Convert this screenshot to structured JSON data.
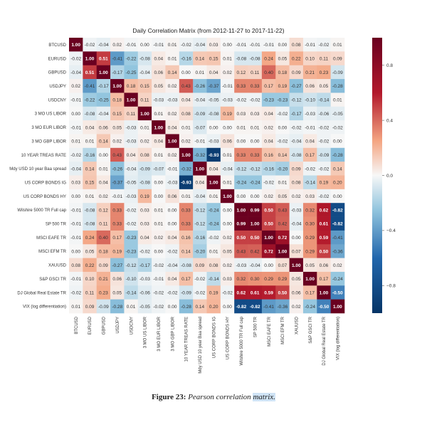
{
  "caption": {
    "label": "Figure 23:",
    "text": "Pearson correlation",
    "highlight": "matrix."
  },
  "chart_data": {
    "type": "heatmap",
    "title": "Daily Correlation Matrix (from 2012-11-27 to 2017-11-22)",
    "labels": [
      "BTCUSD",
      "EURUSD",
      "GBPUSD",
      "USDJPY",
      "USDCNY",
      "3 MO US LIBOR",
      "3 MO EUR LIBOR",
      "3 MO GBP LIBOR",
      "10 YEAR TREAS RATE",
      "Mdy USD 10 year Baa spread",
      "US CORP BONDS IG",
      "US CORP BONDS HY",
      "Wilshire 5000 TR Full cap",
      "SP 500 TR",
      "MSCI EAFE TR",
      "MSCI EFM TR",
      "XAUUSD",
      "S&P GSCI TR",
      "DJ Global Real Estate TR",
      "VIX (log differentiation)"
    ],
    "matrix": [
      [
        1.0,
        -0.02,
        -0.04,
        0.02,
        -0.01,
        -0.0,
        -0.01,
        0.01,
        -0.02,
        -0.04,
        0.03,
        0.0,
        -0.01,
        -0.01,
        -0.01,
        -0.0,
        0.08,
        -0.01,
        -0.02,
        0.01
      ],
      [
        -0.02,
        1.0,
        0.51,
        -0.41,
        -0.22,
        -0.08,
        0.04,
        0.01,
        -0.16,
        0.14,
        0.15,
        0.01,
        -0.08,
        -0.08,
        0.24,
        0.05,
        0.22,
        0.1,
        0.11,
        0.09
      ],
      [
        -0.04,
        0.51,
        1.0,
        -0.17,
        -0.25,
        -0.04,
        0.06,
        0.14,
        -0.0,
        0.01,
        0.04,
        0.02,
        0.12,
        0.11,
        0.4,
        0.18,
        0.09,
        0.21,
        0.23,
        -0.09
      ],
      [
        0.02,
        -0.41,
        -0.17,
        1.0,
        0.18,
        0.15,
        0.05,
        0.02,
        0.43,
        -0.26,
        -0.37,
        -0.01,
        0.33,
        0.33,
        0.17,
        0.19,
        -0.27,
        0.06,
        0.05,
        -0.28
      ],
      [
        -0.01,
        -0.22,
        -0.25,
        0.18,
        1.0,
        0.11,
        -0.03,
        -0.03,
        0.04,
        -0.04,
        -0.05,
        -0.03,
        -0.02,
        -0.02,
        -0.23,
        -0.23,
        -0.12,
        -0.1,
        -0.14,
        0.01
      ],
      [
        -0.0,
        -0.08,
        -0.04,
        0.15,
        0.11,
        1.0,
        0.01,
        0.02,
        0.08,
        -0.09,
        -0.08,
        0.19,
        0.03,
        0.03,
        0.04,
        -0.02,
        -0.17,
        -0.03,
        -0.06,
        -0.05
      ],
      [
        -0.01,
        0.04,
        0.06,
        0.05,
        -0.03,
        0.01,
        1.0,
        0.04,
        0.01,
        -0.07,
        0.0,
        -0.0,
        0.01,
        0.01,
        0.02,
        0.0,
        -0.02,
        -0.01,
        -0.02,
        -0.02
      ],
      [
        0.01,
        0.01,
        0.14,
        0.02,
        -0.03,
        0.02,
        0.04,
        1.0,
        0.02,
        -0.01,
        -0.03,
        0.06,
        0.0,
        0.0,
        0.04,
        -0.02,
        -0.04,
        0.04,
        -0.02,
        -0.0
      ],
      [
        -0.02,
        -0.16,
        -0.0,
        0.43,
        0.04,
        0.08,
        0.01,
        0.02,
        1.0,
        -0.32,
        -0.93,
        0.01,
        0.33,
        0.33,
        0.16,
        0.14,
        -0.08,
        0.17,
        -0.09,
        -0.28
      ],
      [
        -0.04,
        0.14,
        0.01,
        -0.26,
        -0.04,
        -0.09,
        -0.07,
        -0.01,
        -0.32,
        1.0,
        0.04,
        -0.04,
        -0.12,
        -0.12,
        -0.16,
        -0.2,
        0.09,
        -0.02,
        -0.02,
        0.14
      ],
      [
        0.03,
        0.15,
        0.04,
        -0.37,
        -0.05,
        -0.08,
        0.0,
        -0.03,
        -0.93,
        0.04,
        1.0,
        0.01,
        -0.24,
        -0.24,
        -0.02,
        0.01,
        0.08,
        -0.14,
        0.19,
        0.2
      ],
      [
        0.0,
        0.01,
        0.02,
        -0.01,
        -0.03,
        0.19,
        -0.0,
        0.06,
        0.01,
        -0.04,
        0.01,
        1.0,
        -0.0,
        -0.0,
        0.02,
        0.05,
        0.02,
        0.03,
        -0.02,
        -0.0
      ],
      [
        -0.01,
        -0.08,
        0.12,
        0.33,
        -0.02,
        0.03,
        0.01,
        0.0,
        0.33,
        -0.12,
        -0.24,
        -0.0,
        1.0,
        0.99,
        0.5,
        0.43,
        -0.03,
        0.32,
        0.62,
        -0.82
      ],
      [
        -0.01,
        -0.08,
        0.11,
        0.33,
        -0.02,
        0.03,
        0.01,
        0.0,
        0.33,
        -0.12,
        -0.24,
        -0.0,
        0.99,
        1.0,
        0.5,
        0.42,
        -0.04,
        0.3,
        0.61,
        -0.82
      ],
      [
        -0.01,
        0.24,
        0.4,
        0.17,
        -0.23,
        0.04,
        0.02,
        0.04,
        0.16,
        -0.16,
        -0.02,
        0.02,
        0.5,
        0.5,
        1.0,
        0.72,
        0.0,
        0.29,
        0.59,
        -0.41
      ],
      [
        -0.0,
        0.05,
        0.18,
        0.19,
        -0.23,
        -0.02,
        0.0,
        -0.02,
        0.14,
        -0.2,
        0.01,
        0.05,
        0.43,
        0.42,
        0.72,
        1.0,
        0.07,
        0.29,
        0.5,
        -0.36
      ],
      [
        0.08,
        0.22,
        0.09,
        -0.27,
        -0.12,
        -0.17,
        -0.02,
        -0.04,
        -0.08,
        0.09,
        0.08,
        0.02,
        -0.03,
        -0.04,
        0.0,
        0.07,
        1.0,
        0.05,
        0.06,
        0.02
      ],
      [
        -0.01,
        0.1,
        0.21,
        0.06,
        -0.1,
        -0.03,
        -0.01,
        0.04,
        0.17,
        -0.02,
        -0.14,
        0.03,
        0.32,
        0.3,
        0.29,
        0.29,
        0.05,
        1.0,
        0.17,
        -0.24
      ],
      [
        -0.02,
        0.11,
        0.23,
        0.05,
        -0.14,
        -0.06,
        -0.02,
        -0.02,
        -0.09,
        -0.02,
        0.19,
        -0.02,
        0.62,
        0.61,
        0.59,
        0.5,
        0.06,
        0.17,
        1.0,
        -0.5
      ],
      [
        0.01,
        0.09,
        -0.09,
        -0.28,
        0.01,
        -0.05,
        -0.02,
        -0.0,
        -0.28,
        0.14,
        0.2,
        -0.0,
        -0.82,
        -0.82,
        -0.41,
        -0.36,
        0.02,
        -0.24,
        -0.5,
        1.0
      ]
    ],
    "colorbar": {
      "vmin": -1.0,
      "vmax": 1.0,
      "ticks": [
        0.8,
        0.4,
        0.0,
        -0.4,
        -0.8
      ],
      "tick_labels": [
        "0.8",
        "0.4",
        "0.0",
        "−0.4",
        "−0.8"
      ]
    },
    "colors": {
      "negative": "#063466",
      "neutral": "#f7f7f7",
      "positive": "#6a0020"
    }
  }
}
